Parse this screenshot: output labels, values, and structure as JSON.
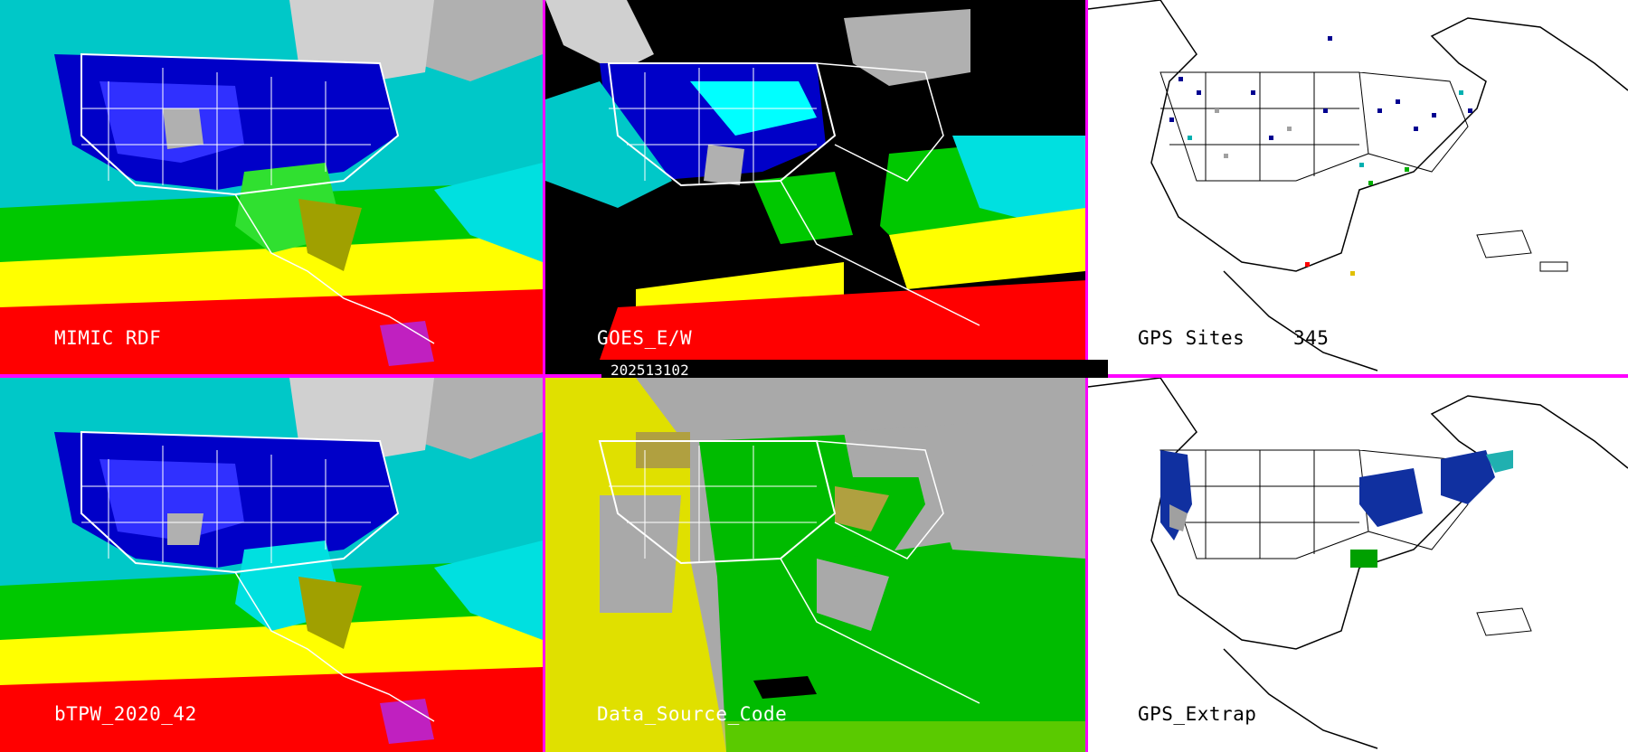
{
  "panels": {
    "mimic_rdf": {
      "label": "MIMIC RDF"
    },
    "goes": {
      "label": "GOES_E/W"
    },
    "gps_sites": {
      "label": "GPS Sites",
      "count": "345"
    },
    "btpw": {
      "label": "bTPW_2020_42"
    },
    "data_source": {
      "label": "Data_Source_Code"
    },
    "gps_extrap": {
      "label": "GPS_Extrap"
    }
  },
  "timestamp": "202513102",
  "colors": {
    "divider": "#ff00ff",
    "map_border": "#ffffff",
    "white_panel_bg": "#ffffff",
    "tpw_scale": [
      "#ffffff",
      "#9e9e9e",
      "#00ffff",
      "#0000c8",
      "#00c800",
      "#ffff00",
      "#ff0000",
      "#a020f0"
    ],
    "data_source_gray": "#a9a9a9",
    "data_source_green": "#00bb00",
    "data_source_yellow": "#e0e000"
  }
}
